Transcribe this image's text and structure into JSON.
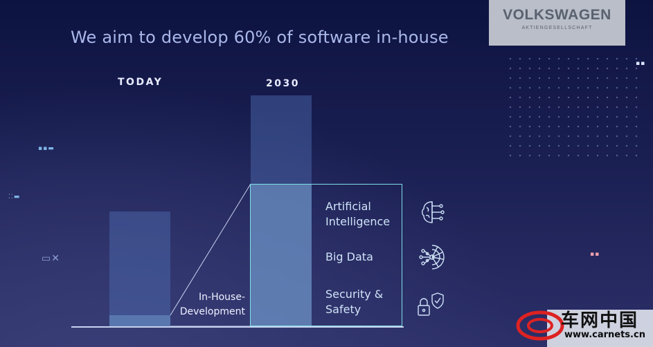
{
  "headline": "We aim to develop 60% of software in-house",
  "logo": {
    "main": "VOLKSWAGEN",
    "sub": "AKTIENGESELLSCHAFT"
  },
  "columns": {
    "today": "TODAY",
    "future": "2030"
  },
  "inhouse_label": "In-House-Development",
  "categories": [
    {
      "line1": "Artificial",
      "line2": "Intelligence",
      "icon": "brain-circuit-icon"
    },
    {
      "line1": "Big Data",
      "line2": "",
      "icon": "data-node-icon"
    },
    {
      "line1": "Security &",
      "line2": "Safety",
      "icon": "lock-shield-icon"
    }
  ],
  "watermark": {
    "cn": "车网中国",
    "url": "www.carnets.cn"
  },
  "colors": {
    "accent": "#7fe0e6",
    "headline": "#aab8ea"
  }
}
